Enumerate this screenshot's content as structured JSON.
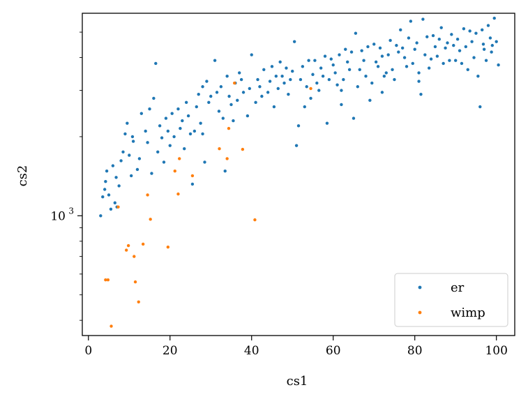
{
  "chart_data": {
    "type": "scatter",
    "title": "",
    "xlabel": "cs1",
    "ylabel": "cs2",
    "xlim": [
      -1.5,
      104.5
    ],
    "ylim": [
      350,
      5900
    ],
    "yscale": "log",
    "x_ticks": [
      0,
      20,
      40,
      60,
      80,
      100
    ],
    "x_tick_labels": [
      "0",
      "20",
      "40",
      "60",
      "80",
      "100"
    ],
    "y_ticks": [
      1000
    ],
    "y_tick_labels": [
      {
        "base": "10",
        "exp": "3"
      }
    ],
    "legend_position": "lower right",
    "grid": false,
    "series": [
      {
        "name": "er",
        "color": "#1f77b4",
        "points": [
          [
            3.0,
            1000
          ],
          [
            3.5,
            1180
          ],
          [
            4.0,
            1260
          ],
          [
            4.5,
            1480
          ],
          [
            5.0,
            1200
          ],
          [
            5.5,
            1060
          ],
          [
            6.0,
            1550
          ],
          [
            6.5,
            1120
          ],
          [
            7.0,
            1080
          ],
          [
            7.5,
            1300
          ],
          [
            8.0,
            1620
          ],
          [
            9.0,
            2050
          ],
          [
            9.5,
            2250
          ],
          [
            10.0,
            1700
          ],
          [
            10.5,
            1420
          ],
          [
            11.0,
            1920
          ],
          [
            12.0,
            1500
          ],
          [
            13.0,
            2450
          ],
          [
            14.0,
            2100
          ],
          [
            15.0,
            2550
          ],
          [
            16.0,
            2800
          ],
          [
            16.5,
            3800
          ],
          [
            17.0,
            1750
          ],
          [
            18.0,
            1980
          ],
          [
            19.0,
            2350
          ],
          [
            20.0,
            1850
          ],
          [
            21.0,
            2000
          ],
          [
            22.0,
            2550
          ],
          [
            23.0,
            2300
          ],
          [
            24.0,
            2700
          ],
          [
            25.0,
            2050
          ],
          [
            25.5,
            1320
          ],
          [
            26.0,
            2100
          ],
          [
            27.0,
            2900
          ],
          [
            28.0,
            3100
          ],
          [
            28.5,
            1600
          ],
          [
            29.0,
            3250
          ],
          [
            30.0,
            2850
          ],
          [
            31.0,
            3900
          ],
          [
            32.0,
            2500
          ],
          [
            33.0,
            2350
          ],
          [
            33.5,
            1480
          ],
          [
            34.0,
            3400
          ],
          [
            35.0,
            2650
          ],
          [
            36.0,
            3200
          ],
          [
            37.0,
            3500
          ],
          [
            38.0,
            2950
          ],
          [
            39.0,
            2400
          ],
          [
            40.0,
            4100
          ],
          [
            41.0,
            2700
          ],
          [
            42.0,
            3100
          ],
          [
            43.0,
            3600
          ],
          [
            44.0,
            2950
          ],
          [
            45.0,
            3700
          ],
          [
            46.0,
            3400
          ],
          [
            47.0,
            3850
          ],
          [
            48.0,
            3200
          ],
          [
            49.0,
            2900
          ],
          [
            50.0,
            3550
          ],
          [
            50.5,
            4600
          ],
          [
            51.0,
            1850
          ],
          [
            51.5,
            2200
          ],
          [
            52.0,
            3300
          ],
          [
            53.0,
            2600
          ],
          [
            54.0,
            3900
          ],
          [
            55.0,
            3450
          ],
          [
            56.0,
            3200
          ],
          [
            57.0,
            3650
          ],
          [
            58.0,
            4050
          ],
          [
            58.5,
            2250
          ],
          [
            59.0,
            3300
          ],
          [
            60.0,
            3750
          ],
          [
            61.0,
            3150
          ],
          [
            62.0,
            2650
          ],
          [
            63.0,
            4300
          ],
          [
            64.0,
            3600
          ],
          [
            65.0,
            2350
          ],
          [
            65.5,
            4950
          ],
          [
            66.0,
            3100
          ],
          [
            67.0,
            4250
          ],
          [
            68.0,
            3400
          ],
          [
            69.0,
            2750
          ],
          [
            70.0,
            4500
          ],
          [
            71.0,
            3700
          ],
          [
            72.0,
            4050
          ],
          [
            73.0,
            3500
          ],
          [
            74.0,
            4650
          ],
          [
            75.0,
            3300
          ],
          [
            76.0,
            4200
          ],
          [
            76.5,
            5100
          ],
          [
            77.0,
            4350
          ],
          [
            78.0,
            3700
          ],
          [
            79.0,
            5500
          ],
          [
            80.0,
            4300
          ],
          [
            81.0,
            3500
          ],
          [
            81.5,
            2900
          ],
          [
            82.0,
            5600
          ],
          [
            83.0,
            4800
          ],
          [
            84.0,
            3950
          ],
          [
            85.0,
            4400
          ],
          [
            86.0,
            4700
          ],
          [
            86.5,
            5200
          ],
          [
            87.0,
            3800
          ],
          [
            88.0,
            4550
          ],
          [
            89.0,
            4900
          ],
          [
            90.0,
            3900
          ],
          [
            91.0,
            4250
          ],
          [
            92.0,
            5150
          ],
          [
            93.0,
            3600
          ],
          [
            94.0,
            4600
          ],
          [
            95.0,
            4950
          ],
          [
            95.5,
            3400
          ],
          [
            96.0,
            2600
          ],
          [
            96.5,
            5100
          ],
          [
            97.0,
            4300
          ],
          [
            97.5,
            3900
          ],
          [
            98.0,
            5300
          ],
          [
            98.5,
            4750
          ],
          [
            99.0,
            4450
          ],
          [
            99.5,
            5650
          ],
          [
            100.0,
            4600
          ],
          [
            100.5,
            3750
          ],
          [
            4.2,
            1350
          ],
          [
            6.8,
            1400
          ],
          [
            8.5,
            1750
          ],
          [
            10.8,
            2000
          ],
          [
            12.5,
            1650
          ],
          [
            14.5,
            1900
          ],
          [
            17.5,
            2200
          ],
          [
            18.5,
            1600
          ],
          [
            20.5,
            2450
          ],
          [
            22.5,
            2150
          ],
          [
            24.5,
            2400
          ],
          [
            26.5,
            2600
          ],
          [
            27.5,
            2250
          ],
          [
            29.5,
            2700
          ],
          [
            31.5,
            2950
          ],
          [
            32.5,
            3100
          ],
          [
            34.5,
            2850
          ],
          [
            36.5,
            2750
          ],
          [
            37.5,
            3300
          ],
          [
            39.5,
            3050
          ],
          [
            41.5,
            3300
          ],
          [
            42.5,
            2850
          ],
          [
            44.5,
            3250
          ],
          [
            46.5,
            3050
          ],
          [
            47.5,
            3400
          ],
          [
            48.5,
            3650
          ],
          [
            49.5,
            3300
          ],
          [
            52.5,
            3700
          ],
          [
            53.5,
            3100
          ],
          [
            55.5,
            3900
          ],
          [
            56.5,
            3000
          ],
          [
            57.5,
            3400
          ],
          [
            59.5,
            3950
          ],
          [
            60.5,
            3500
          ],
          [
            61.5,
            4100
          ],
          [
            62.5,
            3300
          ],
          [
            63.5,
            3850
          ],
          [
            64.5,
            4200
          ],
          [
            66.5,
            3600
          ],
          [
            67.5,
            3900
          ],
          [
            68.5,
            4400
          ],
          [
            69.5,
            3200
          ],
          [
            70.5,
            3850
          ],
          [
            71.5,
            4350
          ],
          [
            72.5,
            3400
          ],
          [
            73.5,
            4100
          ],
          [
            74.5,
            3600
          ],
          [
            75.5,
            4450
          ],
          [
            77.5,
            4000
          ],
          [
            78.5,
            4750
          ],
          [
            79.5,
            3800
          ],
          [
            80.5,
            4550
          ],
          [
            82.5,
            4100
          ],
          [
            83.5,
            3650
          ],
          [
            84.5,
            4850
          ],
          [
            85.5,
            4050
          ],
          [
            87.5,
            4350
          ],
          [
            88.5,
            3900
          ],
          [
            89.5,
            4450
          ],
          [
            90.5,
            4700
          ],
          [
            91.5,
            3800
          ],
          [
            92.5,
            4400
          ],
          [
            93.5,
            5050
          ],
          [
            94.5,
            4000
          ],
          [
            96.8,
            4500
          ],
          [
            98.8,
            4200
          ],
          [
            15.5,
            1450
          ],
          [
            19.5,
            2100
          ],
          [
            23.5,
            1800
          ],
          [
            28.0,
            2050
          ],
          [
            35.5,
            2300
          ],
          [
            45.5,
            2600
          ],
          [
            54.5,
            2800
          ],
          [
            62.0,
            3000
          ],
          [
            72.0,
            2950
          ],
          [
            81.0,
            3250
          ]
        ]
      },
      {
        "name": "wimp",
        "color": "#ff7f0e",
        "points": [
          [
            4.2,
            570
          ],
          [
            4.8,
            570
          ],
          [
            5.6,
            380
          ],
          [
            7.3,
            1080
          ],
          [
            9.3,
            740
          ],
          [
            9.8,
            770
          ],
          [
            11.2,
            700
          ],
          [
            11.5,
            560
          ],
          [
            12.3,
            470
          ],
          [
            13.4,
            780
          ],
          [
            14.5,
            1200
          ],
          [
            15.2,
            970
          ],
          [
            19.5,
            760
          ],
          [
            21.2,
            1480
          ],
          [
            22.0,
            1210
          ],
          [
            22.3,
            1650
          ],
          [
            25.5,
            1420
          ],
          [
            32.1,
            1800
          ],
          [
            34.0,
            1650
          ],
          [
            34.4,
            2150
          ],
          [
            35.8,
            3200
          ],
          [
            37.8,
            1790
          ],
          [
            40.8,
            965
          ],
          [
            54.5,
            3050
          ]
        ]
      }
    ]
  }
}
